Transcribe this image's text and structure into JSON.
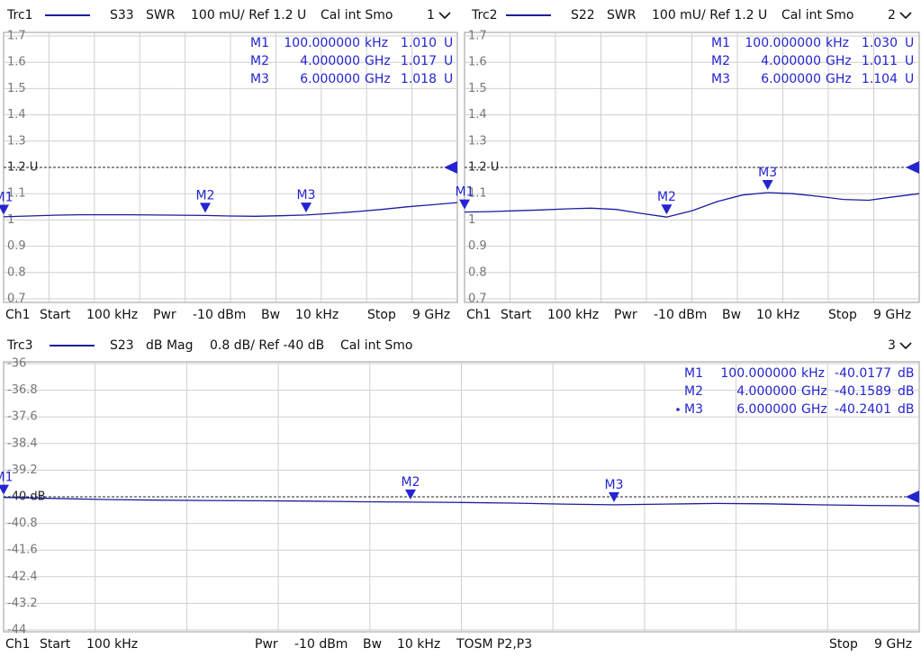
{
  "chart_data": [
    {
      "type": "line",
      "header": {
        "trace": "Trc1",
        "param": "S33",
        "format": "SWR",
        "scale": "100 mU/ Ref 1.2 U",
        "cal": "Cal int Smo",
        "number": "1"
      },
      "x": [
        0.0001,
        0.5,
        1,
        1.5,
        2,
        2.5,
        3,
        3.5,
        4,
        4.5,
        5,
        5.5,
        6,
        6.5,
        7,
        7.5,
        8,
        8.5,
        9
      ],
      "xlim": [
        0.0001,
        9
      ],
      "series": [
        {
          "name": "Trc1",
          "color": "#1c1ca0",
          "values": [
            1.012,
            1.015,
            1.018,
            1.02,
            1.02,
            1.02,
            1.019,
            1.018,
            1.017,
            1.015,
            1.014,
            1.016,
            1.019,
            1.025,
            1.032,
            1.04,
            1.05,
            1.058,
            1.066
          ]
        }
      ],
      "ylim": [
        0.7,
        1.7
      ],
      "yticks": [
        0.7,
        0.8,
        0.9,
        1,
        1.1,
        {
          "value": 1.2,
          "label": "1.2 U"
        },
        1.3,
        1.4,
        1.5,
        1.6,
        1.7
      ],
      "ref_tick": 5,
      "markers": {
        "names": [
          "M1",
          "M2",
          "M3"
        ],
        "x": [
          0.0001,
          4,
          6
        ],
        "x_labels": [
          "100.000000",
          "4.000000",
          "6.000000"
        ],
        "x_units": [
          "kHz",
          "GHz",
          "GHz"
        ],
        "values": [
          1.01,
          1.017,
          1.018
        ],
        "value_labels": [
          "1.010",
          "1.017",
          "1.018"
        ],
        "unit": "U"
      },
      "footer": [
        "Ch1",
        "Start",
        "100 kHz",
        "Pwr",
        "-10 dBm",
        "Bw",
        "10 kHz",
        "Stop",
        "9 GHz"
      ]
    },
    {
      "type": "line",
      "header": {
        "trace": "Trc2",
        "param": "S22",
        "format": "SWR",
        "scale": "100 mU/ Ref 1.2 U",
        "cal": "Cal int Smo",
        "number": "2"
      },
      "x": [
        0.0001,
        0.5,
        1,
        1.5,
        2,
        2.5,
        3,
        3.5,
        4,
        4.5,
        5,
        5.5,
        6,
        6.5,
        7,
        7.5,
        8,
        8.5,
        9
      ],
      "xlim": [
        0.0001,
        9
      ],
      "series": [
        {
          "name": "Trc2",
          "color": "#1c1ca0",
          "values": [
            1.03,
            1.032,
            1.035,
            1.038,
            1.042,
            1.045,
            1.04,
            1.025,
            1.011,
            1.035,
            1.07,
            1.095,
            1.104,
            1.1,
            1.09,
            1.078,
            1.075,
            1.088,
            1.1
          ]
        }
      ],
      "ylim": [
        0.7,
        1.7
      ],
      "yticks": [
        0.7,
        0.8,
        0.9,
        1,
        1.1,
        {
          "value": 1.2,
          "label": "1.2 U"
        },
        1.3,
        1.4,
        1.5,
        1.6,
        1.7
      ],
      "ref_tick": 5,
      "markers": {
        "names": [
          "M1",
          "M2",
          "M3"
        ],
        "x": [
          0.0001,
          4,
          6
        ],
        "x_labels": [
          "100.000000",
          "4.000000",
          "6.000000"
        ],
        "x_units": [
          "kHz",
          "GHz",
          "GHz"
        ],
        "values": [
          1.03,
          1.011,
          1.104
        ],
        "value_labels": [
          "1.030",
          "1.011",
          "1.104"
        ],
        "unit": "U"
      },
      "footer": [
        "Ch1",
        "Start",
        "100 kHz",
        "Pwr",
        "-10 dBm",
        "Bw",
        "10 kHz",
        "Stop",
        "9 GHz"
      ]
    },
    {
      "type": "line",
      "header": {
        "trace": "Trc3",
        "param": "S23",
        "format": "dB Mag",
        "scale": "0.8 dB/ Ref -40 dB",
        "cal": "Cal int Smo",
        "number": "3"
      },
      "x": [
        0.0001,
        0.5,
        1,
        1.5,
        2,
        2.5,
        3,
        3.5,
        4,
        4.5,
        5,
        5.5,
        6,
        6.5,
        7,
        7.5,
        8,
        8.5,
        9
      ],
      "xlim": [
        0.0001,
        9
      ],
      "series": [
        {
          "name": "Trc3",
          "color": "#1c1ca0",
          "values": [
            -40.02,
            -40.05,
            -40.08,
            -40.1,
            -40.11,
            -40.12,
            -40.13,
            -40.15,
            -40.16,
            -40.17,
            -40.19,
            -40.22,
            -40.24,
            -40.22,
            -40.2,
            -40.21,
            -40.24,
            -40.26,
            -40.27
          ]
        }
      ],
      "ylim": [
        -44,
        -36
      ],
      "yticks": [
        -36,
        -36.8,
        -37.6,
        -38.4,
        -39.2,
        {
          "value": -40,
          "label": "-40 dB"
        },
        -40.8,
        -41.6,
        -42.4,
        -43.2,
        -44
      ],
      "ref_tick": 5,
      "markers": {
        "names": [
          "M1",
          "M2",
          "M3"
        ],
        "x": [
          0.0001,
          4,
          6
        ],
        "x_labels": [
          "100.000000",
          "4.000000",
          "6.000000"
        ],
        "x_units": [
          "kHz",
          "GHz",
          "GHz"
        ],
        "values": [
          -40.0177,
          -40.1589,
          -40.2401
        ],
        "unit": "dB"
      },
      "footer": [
        "Ch1",
        "Start",
        "100 kHz",
        "Pwr",
        "-10 dBm",
        "Bw",
        "10 kHz",
        "TOSM P2,P3",
        "Stop",
        "9 GHz"
      ]
    }
  ]
}
